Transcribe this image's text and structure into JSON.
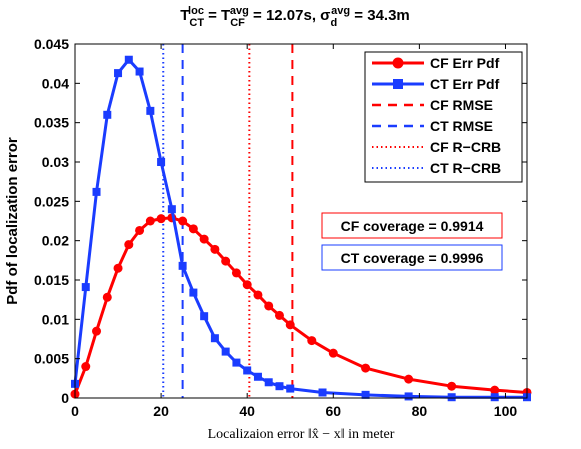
{
  "chart_data": {
    "type": "line",
    "title": {
      "T": "T",
      "ct_sub": "CT",
      "ct_sup": "loc",
      "eq1": " = T",
      "cf_sub": "CF",
      "cf_sup": "avg",
      "eq2": " = 12.07s, σ",
      "d_sub": "d",
      "d_sup": "avg",
      "eq3": " = 34.3m"
    },
    "xlabel": "Localizaion error ‖x̂ − x‖ in meter",
    "ylabel": "Pdf of localization error",
    "xlim": [
      0,
      105
    ],
    "ylim": [
      0,
      0.045
    ],
    "xticks": [
      "0",
      "20",
      "40",
      "60",
      "80",
      "100"
    ],
    "yticks": [
      "0",
      "0.005",
      "0.01",
      "0.015",
      "0.02",
      "0.025",
      "0.03",
      "0.035",
      "0.04",
      "0.045"
    ],
    "grid": false,
    "legend_position": "top-right",
    "colors": {
      "cf": "#ff0000",
      "ct": "#1a3cff"
    },
    "series": [
      {
        "name": "CF Err Pdf",
        "style": "solid-circle",
        "x": [
          0,
          2.5,
          5,
          7.5,
          10,
          12.5,
          15,
          17.5,
          20,
          22.5,
          25,
          27.5,
          30,
          32.5,
          35,
          37.5,
          40,
          42.5,
          45,
          47.5,
          50,
          55,
          60,
          67.5,
          77.5,
          87.5,
          97.5,
          105
        ],
        "y": [
          0.0005,
          0.004,
          0.0085,
          0.0128,
          0.0165,
          0.0195,
          0.0213,
          0.0225,
          0.0228,
          0.0229,
          0.0225,
          0.0215,
          0.0202,
          0.0189,
          0.0174,
          0.0159,
          0.0144,
          0.0131,
          0.0117,
          0.0105,
          0.0093,
          0.0073,
          0.0057,
          0.0038,
          0.0024,
          0.0015,
          0.001,
          0.0007
        ]
      },
      {
        "name": "CT Err Pdf",
        "style": "solid-square",
        "x": [
          0,
          2.5,
          5,
          7.5,
          10,
          12.5,
          15,
          17.5,
          20,
          22.5,
          25,
          27.5,
          30,
          32.5,
          35,
          37.5,
          40,
          42.5,
          45,
          47.5,
          50,
          57.5,
          67.5,
          77.5,
          87.5,
          97.5,
          105
        ],
        "y": [
          0.0018,
          0.0141,
          0.0262,
          0.036,
          0.0413,
          0.043,
          0.0415,
          0.0365,
          0.03,
          0.024,
          0.0168,
          0.0134,
          0.0104,
          0.0076,
          0.0059,
          0.0045,
          0.0035,
          0.0027,
          0.002,
          0.0015,
          0.0012,
          0.0007,
          0.0004,
          0.0002,
          0.0001,
          0.0001,
          0.0001
        ]
      },
      {
        "name": "CF RMSE",
        "style": "dashed-red",
        "x": 50.5
      },
      {
        "name": "CT RMSE",
        "style": "dashed-blue",
        "x": 25.0
      },
      {
        "name": "CF R−CRB",
        "style": "dotted-red",
        "x": 40.5
      },
      {
        "name": "CT R−CRB",
        "style": "dotted-blue",
        "x": 20.5
      }
    ],
    "annotations": [
      {
        "text": "CF coverage = 0.9914",
        "color": "#ff0000"
      },
      {
        "text": "CT coverage = 0.9996",
        "color": "#1a3cff"
      }
    ]
  }
}
